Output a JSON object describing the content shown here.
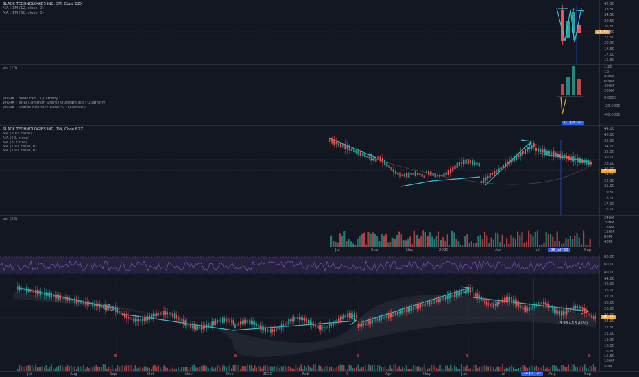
{
  "chart_top": {
    "legend": [
      "SLACK TECHNOLOGIES INC, 3M, Cboe BZX",
      "MA : 1M (12, close, 0)",
      "MA : 1M (60, close, 0)"
    ],
    "price_axis": [
      "42.50",
      "38.50",
      "34.50",
      "30.50",
      "26.50",
      "24.50",
      "22.50",
      "20.50",
      "18.50",
      "17.00",
      "15.60"
    ],
    "price_tag": "25.40",
    "vol_legend": "Vol (10)",
    "vol_axis": [
      "1.2B",
      "1B",
      "800M",
      "600M",
      "400M",
      "200M"
    ],
    "fund_legend": [
      "WORK : Basic EPS : Quarterly",
      "WORK : Total Common Shares Outstanding : Quarterly",
      "WORK : Shares Buyback Ratio % : Quarterly"
    ],
    "fund_axis": [
      "0.0000",
      "-20.0000",
      "-40.0000"
    ],
    "date_tag": "01 Jul '20"
  },
  "chart_mid": {
    "legend": [
      "SLACK TECHNOLOGIES INC, 1W, Cboe BZX",
      "MA (200, close)",
      "MA (50, close)",
      "MA (8, close)",
      "MA (100, close, 0)",
      "MA (150, close, 0)"
    ],
    "price_axis": [
      "44.00",
      "40.00",
      "36.00",
      "34.00",
      "32.00",
      "30.00",
      "28.00",
      "26.00",
      "24.00",
      "22.50",
      "21.00",
      "19.50",
      "18.00",
      "17.00",
      "16.00"
    ],
    "price_tag": "25.40",
    "vol_legend": "Vol (20)",
    "vol_axis": [
      "240M",
      "200M",
      "160M",
      "120M",
      "80M",
      "40M"
    ],
    "x_labels": [
      "Jul",
      "Sep",
      "Nov",
      "2020",
      "Apr",
      "Jul",
      "Sep"
    ],
    "date_tag": "06 Jul '20"
  },
  "chart_rsi": {
    "axis": [
      "80.00",
      "60.00",
      "40.00"
    ]
  },
  "chart_bottom": {
    "price_axis": [
      "44.00",
      "40.00",
      "36.00",
      "32.00",
      "30.00",
      "28.00",
      "26.00",
      "24.00",
      "22.50",
      "21.00",
      "19.50",
      "18.00",
      "16.80",
      "15.60"
    ],
    "price_tag": "25.40",
    "measure": "-3.93 (-13.45%)",
    "vol_axis": [
      "100M",
      "50M"
    ],
    "x_labels": [
      "Jul",
      "Aug",
      "Sep",
      "Oct",
      "Nov",
      "Dec",
      "2020",
      "Feb",
      "3",
      "Apr",
      "May",
      "Jun",
      "Jul",
      "Aug",
      "Sep"
    ],
    "date_tag": "24 Jul '20",
    "markers": [
      "E",
      "E",
      "E",
      "E",
      "E"
    ]
  },
  "colors": {
    "up": "#26a69a",
    "down": "#ef5350",
    "arrow": "#36c2d8",
    "rsi": "#7e57c2",
    "tag_orange": "#f5a623",
    "tag_blue": "#2962ff"
  }
}
